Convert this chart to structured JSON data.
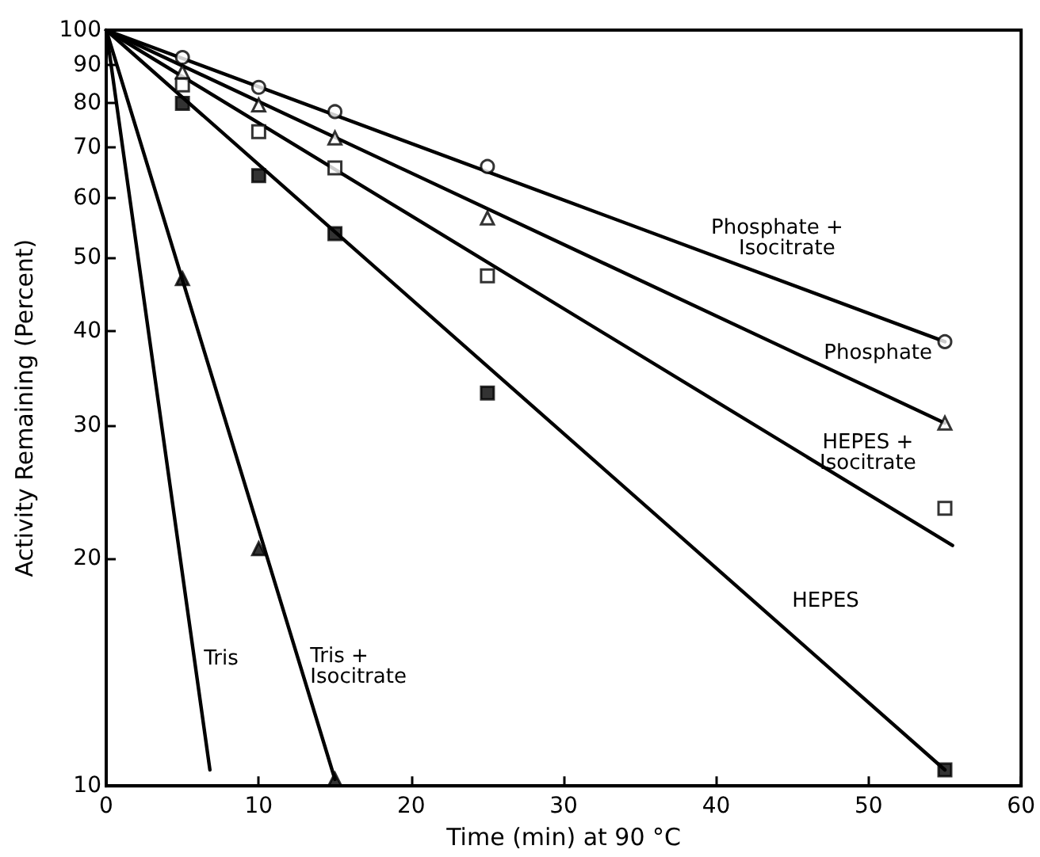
{
  "chart_data": {
    "type": "line",
    "xlabel": "Time (min) at 90 °C",
    "ylabel": "Activity Remaining (Percent)",
    "log": "y",
    "xlim": [
      0,
      60
    ],
    "xticks": [
      0,
      10,
      20,
      30,
      40,
      50,
      60
    ],
    "ylim": [
      10,
      100
    ],
    "yticks": [
      10,
      20,
      30,
      40,
      50,
      60,
      70,
      80,
      90,
      100
    ],
    "grid": false,
    "legend": false,
    "line_style": "solid",
    "series": [
      {
        "name": "Phosphate + Isocitrate",
        "color": "#000000",
        "marker": "none",
        "x": [
          0,
          55
        ],
        "values": [
          100,
          38.7
        ]
      },
      {
        "name": "Phosphate",
        "color": "#000000",
        "marker": "none",
        "x": [
          0,
          55
        ],
        "values": [
          100,
          30.2
        ]
      },
      {
        "name": "HEPES + Isocitrate",
        "color": "#000000",
        "marker": "none",
        "x": [
          0,
          55.5
        ],
        "values": [
          100,
          20.8
        ]
      },
      {
        "name": "HEPES",
        "color": "#000000",
        "marker": "none",
        "x": [
          0,
          55
        ],
        "values": [
          100,
          10.5
        ]
      },
      {
        "name": "Tris + Isocitrate",
        "color": "#000000",
        "marker": "none",
        "x": [
          0,
          15
        ],
        "values": [
          100,
          10.2
        ]
      },
      {
        "name": "Tris",
        "color": "#000000",
        "marker": "none",
        "x": [
          0,
          6.8
        ],
        "values": [
          100,
          10.5
        ]
      },
      {
        "type": "scatter",
        "color": "#ffffff",
        "marker": "circle",
        "x": [
          5,
          10,
          15,
          25,
          55
        ],
        "values": [
          92,
          84,
          78,
          66,
          38.7
        ]
      },
      {
        "type": "scatter",
        "color": "#ffffff",
        "marker": "triangle",
        "x": [
          5,
          10,
          15,
          25,
          55
        ],
        "values": [
          88,
          79.6,
          72,
          56.4,
          30.2
        ]
      },
      {
        "type": "scatter",
        "color": "#ffffff",
        "marker": "square",
        "x": [
          5,
          10,
          15,
          25,
          55
        ],
        "values": [
          84.6,
          73.4,
          65.7,
          47.3,
          23.3
        ]
      },
      {
        "type": "scatter",
        "color": "#000000",
        "marker": "square",
        "x": [
          5,
          10,
          15,
          25,
          55
        ],
        "values": [
          80,
          64.2,
          53.8,
          33.1,
          10.5
        ]
      },
      {
        "type": "scatter",
        "color": "#000000",
        "marker": "triangle",
        "x": [
          5,
          10,
          15
        ],
        "values": [
          46.9,
          20.6,
          10.2
        ]
      }
    ]
  }
}
